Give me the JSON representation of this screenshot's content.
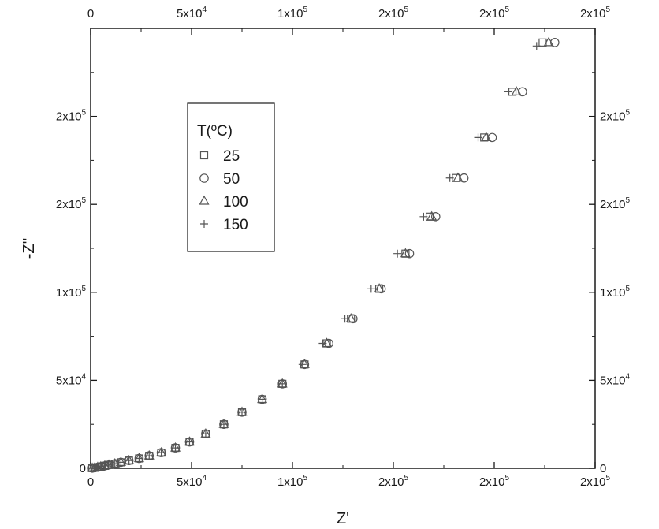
{
  "chart_data": {
    "type": "scatter",
    "xlabel": "Z'",
    "ylabel": "-Z''",
    "xlim": [
      0,
      250000
    ],
    "ylim": [
      0,
      250000
    ],
    "x_ticks": [
      {
        "value": 0,
        "label": "0"
      },
      {
        "value": 50000,
        "label": "5x10^4"
      },
      {
        "value": 100000,
        "label": "1x10^5"
      },
      {
        "value": 150000,
        "label": "2x10^5"
      },
      {
        "value": 200000,
        "label": "2x10^5"
      },
      {
        "value": 250000,
        "label": "2x10^5"
      }
    ],
    "y_ticks": [
      {
        "value": 0,
        "label": "0"
      },
      {
        "value": 50000,
        "label": "5x10^4"
      },
      {
        "value": 100000,
        "label": "1x10^5"
      },
      {
        "value": 150000,
        "label": "2x10^5"
      },
      {
        "value": 200000,
        "label": "2x10^5"
      }
    ],
    "grid": false,
    "legend": {
      "title": "T(ºC)",
      "placement": "top-left"
    },
    "series": [
      {
        "name": "25",
        "marker": "square",
        "points": [
          [
            800,
            100
          ],
          [
            2000,
            300
          ],
          [
            3500,
            600
          ],
          [
            5000,
            900
          ],
          [
            7000,
            1400
          ],
          [
            9000,
            1900
          ],
          [
            12000,
            2600
          ],
          [
            15000,
            3400
          ],
          [
            19000,
            4400
          ],
          [
            24000,
            5600
          ],
          [
            29000,
            7100
          ],
          [
            35000,
            8900
          ],
          [
            42000,
            11600
          ],
          [
            49000,
            15000
          ],
          [
            57000,
            19600
          ],
          [
            66000,
            25000
          ],
          [
            75000,
            31900
          ],
          [
            85000,
            39200
          ],
          [
            95000,
            48000
          ],
          [
            106000,
            59000
          ],
          [
            117000,
            71000
          ],
          [
            129000,
            85000
          ],
          [
            143000,
            102000
          ],
          [
            156000,
            122000
          ],
          [
            168000,
            143000
          ],
          [
            181000,
            165000
          ],
          [
            195000,
            188000
          ],
          [
            209000,
            214000
          ],
          [
            224000,
            242000
          ]
        ]
      },
      {
        "name": "50",
        "marker": "circle",
        "points": [
          [
            800,
            100
          ],
          [
            2000,
            300
          ],
          [
            3500,
            600
          ],
          [
            5000,
            900
          ],
          [
            7000,
            1400
          ],
          [
            9000,
            1900
          ],
          [
            12000,
            2600
          ],
          [
            15000,
            3400
          ],
          [
            19000,
            4400
          ],
          [
            24000,
            5600
          ],
          [
            29000,
            7100
          ],
          [
            35000,
            8900
          ],
          [
            42000,
            11600
          ],
          [
            49000,
            15000
          ],
          [
            57000,
            19600
          ],
          [
            66000,
            25000
          ],
          [
            75000,
            31900
          ],
          [
            85000,
            39200
          ],
          [
            95000,
            48000
          ],
          [
            106000,
            59000
          ],
          [
            118000,
            71000
          ],
          [
            130000,
            85000
          ],
          [
            144000,
            102000
          ],
          [
            158000,
            122000
          ],
          [
            171000,
            143000
          ],
          [
            185000,
            165000
          ],
          [
            199000,
            188000
          ],
          [
            214000,
            214000
          ],
          [
            230000,
            242000
          ]
        ]
      },
      {
        "name": "100",
        "marker": "triangle",
        "points": [
          [
            800,
            100
          ],
          [
            2000,
            300
          ],
          [
            3500,
            600
          ],
          [
            5000,
            900
          ],
          [
            7000,
            1400
          ],
          [
            9000,
            1900
          ],
          [
            12000,
            2600
          ],
          [
            15000,
            3400
          ],
          [
            19000,
            4400
          ],
          [
            24000,
            5600
          ],
          [
            29000,
            7100
          ],
          [
            35000,
            8900
          ],
          [
            42000,
            11600
          ],
          [
            49000,
            15000
          ],
          [
            57000,
            19600
          ],
          [
            66000,
            25000
          ],
          [
            75000,
            31900
          ],
          [
            85000,
            39200
          ],
          [
            95000,
            48000
          ],
          [
            106000,
            59000
          ],
          [
            117000,
            71000
          ],
          [
            129000,
            85000
          ],
          [
            143000,
            102000
          ],
          [
            156000,
            122000
          ],
          [
            169000,
            143000
          ],
          [
            182000,
            165000
          ],
          [
            196000,
            188000
          ],
          [
            211000,
            214000
          ],
          [
            227000,
            242000
          ]
        ]
      },
      {
        "name": "150",
        "marker": "plus",
        "points": [
          [
            800,
            100
          ],
          [
            2000,
            300
          ],
          [
            3500,
            600
          ],
          [
            5000,
            900
          ],
          [
            7000,
            1400
          ],
          [
            9000,
            1900
          ],
          [
            12000,
            2600
          ],
          [
            15000,
            3400
          ],
          [
            19000,
            4400
          ],
          [
            24000,
            5600
          ],
          [
            29000,
            7100
          ],
          [
            35000,
            8900
          ],
          [
            42000,
            11600
          ],
          [
            49000,
            15000
          ],
          [
            57000,
            19600
          ],
          [
            66000,
            25000
          ],
          [
            75000,
            31900
          ],
          [
            85000,
            39200
          ],
          [
            95000,
            48000
          ],
          [
            105000,
            59000
          ],
          [
            115000,
            71000
          ],
          [
            126000,
            85000
          ],
          [
            139000,
            102000
          ],
          [
            152000,
            122000
          ],
          [
            165000,
            143000
          ],
          [
            178000,
            165000
          ],
          [
            192000,
            188000
          ],
          [
            207000,
            214000
          ],
          [
            221000,
            240000
          ]
        ]
      }
    ]
  }
}
